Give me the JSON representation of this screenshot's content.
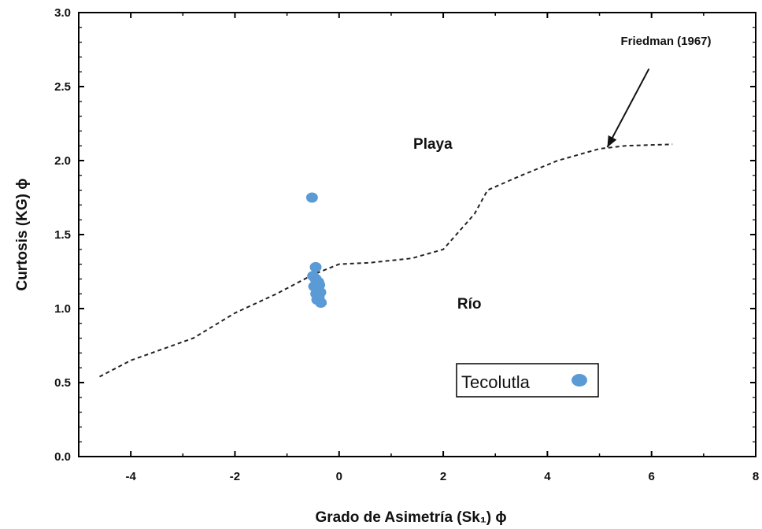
{
  "chart_data": {
    "type": "scatter",
    "xlabel": "Grado de Asimetría (Sk₁) ϕ",
    "ylabel": "Curtosis (KG) ϕ",
    "xlim": [
      -5,
      8
    ],
    "ylim": [
      0.0,
      3.0
    ],
    "x_ticks": [
      -4,
      -2,
      0,
      2,
      4,
      6,
      8
    ],
    "x_tick_labels": [
      "-4",
      "-2",
      "0",
      "2",
      "4",
      "6",
      "8"
    ],
    "y_ticks": [
      0.0,
      0.5,
      1.0,
      1.5,
      2.0,
      2.5,
      3.0
    ],
    "y_tick_labels": [
      "0.0",
      "0.5",
      "1.0",
      "1.5",
      "2.0",
      "2.5",
      "3.0"
    ],
    "grid": false,
    "series": [
      {
        "name": "Tecolutla",
        "color": "#5b9bd5",
        "points": [
          {
            "x": -0.52,
            "y": 1.75
          },
          {
            "x": -0.45,
            "y": 1.28
          },
          {
            "x": -0.5,
            "y": 1.22
          },
          {
            "x": -0.45,
            "y": 1.2
          },
          {
            "x": -0.4,
            "y": 1.18
          },
          {
            "x": -0.38,
            "y": 1.16
          },
          {
            "x": -0.48,
            "y": 1.15
          },
          {
            "x": -0.42,
            "y": 1.13
          },
          {
            "x": -0.36,
            "y": 1.11
          },
          {
            "x": -0.44,
            "y": 1.1
          },
          {
            "x": -0.39,
            "y": 1.08
          },
          {
            "x": -0.42,
            "y": 1.06
          },
          {
            "x": -0.35,
            "y": 1.04
          }
        ]
      }
    ],
    "boundary_line": {
      "style": "dashed",
      "points": [
        {
          "x": -4.6,
          "y": 0.54
        },
        {
          "x": -4.0,
          "y": 0.65
        },
        {
          "x": -2.8,
          "y": 0.8
        },
        {
          "x": -2.0,
          "y": 0.97
        },
        {
          "x": -1.2,
          "y": 1.1
        },
        {
          "x": -0.5,
          "y": 1.23
        },
        {
          "x": 0.0,
          "y": 1.3
        },
        {
          "x": 0.6,
          "y": 1.31
        },
        {
          "x": 1.4,
          "y": 1.34
        },
        {
          "x": 2.0,
          "y": 1.4
        },
        {
          "x": 2.6,
          "y": 1.64
        },
        {
          "x": 2.85,
          "y": 1.8
        },
        {
          "x": 3.5,
          "y": 1.9
        },
        {
          "x": 4.2,
          "y": 2.0
        },
        {
          "x": 5.0,
          "y": 2.08
        },
        {
          "x": 5.5,
          "y": 2.1
        },
        {
          "x": 6.4,
          "y": 2.11
        }
      ]
    },
    "region_labels": [
      {
        "text": "Playa",
        "x": 1.8,
        "y": 2.08
      },
      {
        "text": "Río",
        "x": 2.5,
        "y": 1.0
      }
    ],
    "annotation": {
      "text": "Friedman (1967)",
      "arrow_from": {
        "x": 5.95,
        "y": 2.62
      },
      "arrow_to": {
        "x": 5.15,
        "y": 2.09
      }
    },
    "legend": {
      "position": "bottom-right",
      "entries": [
        {
          "label": "Tecolutla",
          "color": "#5b9bd5"
        }
      ]
    }
  }
}
